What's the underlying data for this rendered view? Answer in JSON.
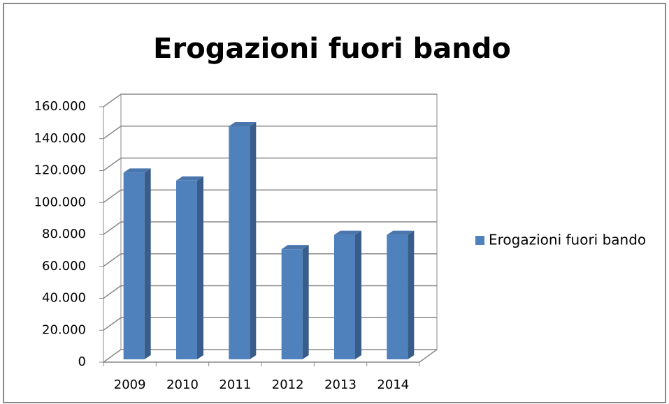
{
  "chart_data": {
    "type": "bar3d",
    "title": "Erogazioni fuori bando",
    "categories": [
      "2009",
      "2010",
      "2011",
      "2012",
      "2013",
      "2014"
    ],
    "series": [
      {
        "name": "Erogazioni fuori bando",
        "color": "#4f81bd",
        "values": [
          117000,
          112000,
          146000,
          69000,
          78000,
          78000
        ]
      }
    ],
    "ylim": [
      0,
      160000
    ],
    "yticks": [
      0,
      {
        "value": 20000,
        "label": "20.000"
      },
      {
        "value": 40000,
        "label": "40.000"
      },
      {
        "value": 60000,
        "label": "60.000"
      },
      {
        "value": 80000,
        "label": "80.000"
      },
      {
        "value": 100000,
        "label": "100.000"
      },
      {
        "value": 120000,
        "label": "120.000"
      },
      {
        "value": 140000,
        "label": "140.000"
      },
      {
        "value": 160000,
        "label": "160.000"
      }
    ],
    "grid": true,
    "legend": "right"
  }
}
